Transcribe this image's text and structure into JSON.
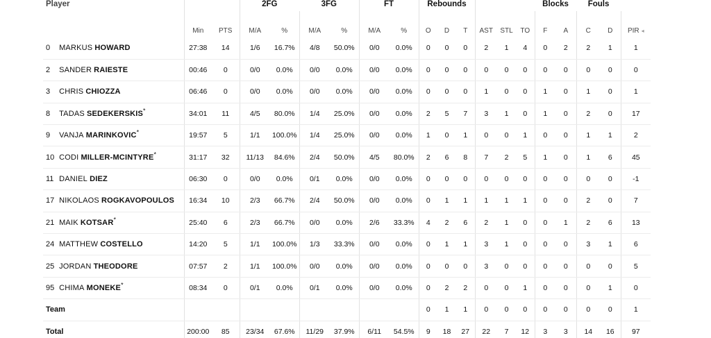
{
  "headers": {
    "player": "Player",
    "groups": {
      "fg2": "2FG",
      "fg3": "3FG",
      "ft": "FT",
      "rebounds": "Rebounds",
      "blocks": "Blocks",
      "fouls": "Fouls"
    },
    "cols": {
      "min": "Min",
      "pts": "PTS",
      "fg2_ma": "M/A",
      "fg2_pct": "%",
      "fg3_ma": "M/A",
      "fg3_pct": "%",
      "ft_ma": "M/A",
      "ft_pct": "%",
      "reb_o": "O",
      "reb_d": "D",
      "reb_t": "T",
      "ast": "AST",
      "stl": "STL",
      "to": "TO",
      "blk_f": "F",
      "blk_a": "A",
      "foul_c": "C",
      "foul_d": "D",
      "pir": "PIR",
      "pir_more": "◂"
    }
  },
  "players": [
    {
      "num": "0",
      "first": "MARKUS",
      "last": "HOWARD",
      "star": "",
      "min": "27:38",
      "pts": "14",
      "fg2": "1/6",
      "fg2p": "16.7%",
      "fg3": "4/8",
      "fg3p": "50.0%",
      "ft": "0/0",
      "ftp": "0.0%",
      "o": "0",
      "d": "0",
      "t": "0",
      "ast": "2",
      "stl": "1",
      "to": "4",
      "bf": "0",
      "ba": "2",
      "fc": "2",
      "fd": "1",
      "pir": "1"
    },
    {
      "num": "2",
      "first": "SANDER",
      "last": "RAIESTE",
      "star": "",
      "min": "00:46",
      "pts": "0",
      "fg2": "0/0",
      "fg2p": "0.0%",
      "fg3": "0/0",
      "fg3p": "0.0%",
      "ft": "0/0",
      "ftp": "0.0%",
      "o": "0",
      "d": "0",
      "t": "0",
      "ast": "0",
      "stl": "0",
      "to": "0",
      "bf": "0",
      "ba": "0",
      "fc": "0",
      "fd": "0",
      "pir": "0"
    },
    {
      "num": "3",
      "first": "CHRIS",
      "last": "CHIOZZA",
      "star": "",
      "min": "06:46",
      "pts": "0",
      "fg2": "0/0",
      "fg2p": "0.0%",
      "fg3": "0/0",
      "fg3p": "0.0%",
      "ft": "0/0",
      "ftp": "0.0%",
      "o": "0",
      "d": "0",
      "t": "0",
      "ast": "1",
      "stl": "0",
      "to": "0",
      "bf": "1",
      "ba": "0",
      "fc": "1",
      "fd": "0",
      "pir": "1"
    },
    {
      "num": "8",
      "first": "TADAS",
      "last": "SEDEKERSKIS",
      "star": "*",
      "min": "34:01",
      "pts": "11",
      "fg2": "4/5",
      "fg2p": "80.0%",
      "fg3": "1/4",
      "fg3p": "25.0%",
      "ft": "0/0",
      "ftp": "0.0%",
      "o": "2",
      "d": "5",
      "t": "7",
      "ast": "3",
      "stl": "1",
      "to": "0",
      "bf": "1",
      "ba": "0",
      "fc": "2",
      "fd": "0",
      "pir": "17"
    },
    {
      "num": "9",
      "first": "VANJA",
      "last": "MARINKOVIC",
      "star": "*",
      "min": "19:57",
      "pts": "5",
      "fg2": "1/1",
      "fg2p": "100.0%",
      "fg3": "1/4",
      "fg3p": "25.0%",
      "ft": "0/0",
      "ftp": "0.0%",
      "o": "1",
      "d": "0",
      "t": "1",
      "ast": "0",
      "stl": "0",
      "to": "1",
      "bf": "0",
      "ba": "0",
      "fc": "1",
      "fd": "1",
      "pir": "2"
    },
    {
      "num": "10",
      "first": "CODI",
      "last": "MILLER-MCINTYRE",
      "star": "*",
      "min": "31:17",
      "pts": "32",
      "fg2": "11/13",
      "fg2p": "84.6%",
      "fg3": "2/4",
      "fg3p": "50.0%",
      "ft": "4/5",
      "ftp": "80.0%",
      "o": "2",
      "d": "6",
      "t": "8",
      "ast": "7",
      "stl": "2",
      "to": "5",
      "bf": "1",
      "ba": "0",
      "fc": "1",
      "fd": "6",
      "pir": "45"
    },
    {
      "num": "11",
      "first": "DANIEL",
      "last": "DIEZ",
      "star": "",
      "min": "06:30",
      "pts": "0",
      "fg2": "0/0",
      "fg2p": "0.0%",
      "fg3": "0/1",
      "fg3p": "0.0%",
      "ft": "0/0",
      "ftp": "0.0%",
      "o": "0",
      "d": "0",
      "t": "0",
      "ast": "0",
      "stl": "0",
      "to": "0",
      "bf": "0",
      "ba": "0",
      "fc": "0",
      "fd": "0",
      "pir": "-1"
    },
    {
      "num": "17",
      "first": "NIKOLAOS",
      "last": "ROGKAVOPOULOS",
      "star": "",
      "min": "16:34",
      "pts": "10",
      "fg2": "2/3",
      "fg2p": "66.7%",
      "fg3": "2/4",
      "fg3p": "50.0%",
      "ft": "0/0",
      "ftp": "0.0%",
      "o": "0",
      "d": "1",
      "t": "1",
      "ast": "1",
      "stl": "1",
      "to": "1",
      "bf": "0",
      "ba": "0",
      "fc": "2",
      "fd": "0",
      "pir": "7"
    },
    {
      "num": "21",
      "first": "MAIK",
      "last": "KOTSAR",
      "star": "*",
      "min": "25:40",
      "pts": "6",
      "fg2": "2/3",
      "fg2p": "66.7%",
      "fg3": "0/0",
      "fg3p": "0.0%",
      "ft": "2/6",
      "ftp": "33.3%",
      "o": "4",
      "d": "2",
      "t": "6",
      "ast": "2",
      "stl": "1",
      "to": "0",
      "bf": "0",
      "ba": "1",
      "fc": "2",
      "fd": "6",
      "pir": "13"
    },
    {
      "num": "24",
      "first": "MATTHEW",
      "last": "COSTELLO",
      "star": "",
      "min": "14:20",
      "pts": "5",
      "fg2": "1/1",
      "fg2p": "100.0%",
      "fg3": "1/3",
      "fg3p": "33.3%",
      "ft": "0/0",
      "ftp": "0.0%",
      "o": "0",
      "d": "1",
      "t": "1",
      "ast": "3",
      "stl": "1",
      "to": "0",
      "bf": "0",
      "ba": "0",
      "fc": "3",
      "fd": "1",
      "pir": "6"
    },
    {
      "num": "25",
      "first": "JORDAN",
      "last": "THEODORE",
      "star": "",
      "min": "07:57",
      "pts": "2",
      "fg2": "1/1",
      "fg2p": "100.0%",
      "fg3": "0/0",
      "fg3p": "0.0%",
      "ft": "0/0",
      "ftp": "0.0%",
      "o": "0",
      "d": "0",
      "t": "0",
      "ast": "3",
      "stl": "0",
      "to": "0",
      "bf": "0",
      "ba": "0",
      "fc": "0",
      "fd": "0",
      "pir": "5"
    },
    {
      "num": "95",
      "first": "CHIMA",
      "last": "MONEKE",
      "star": "*",
      "min": "08:34",
      "pts": "0",
      "fg2": "0/1",
      "fg2p": "0.0%",
      "fg3": "0/1",
      "fg3p": "0.0%",
      "ft": "0/0",
      "ftp": "0.0%",
      "o": "0",
      "d": "2",
      "t": "2",
      "ast": "0",
      "stl": "0",
      "to": "1",
      "bf": "0",
      "ba": "0",
      "fc": "0",
      "fd": "1",
      "pir": "0"
    }
  ],
  "team": {
    "label": "Team",
    "o": "0",
    "d": "1",
    "t": "1",
    "ast": "0",
    "stl": "0",
    "to": "0",
    "bf": "0",
    "ba": "0",
    "fc": "0",
    "fd": "0",
    "pir": "1"
  },
  "total": {
    "label": "Total",
    "min": "200:00",
    "pts": "85",
    "fg2": "23/34",
    "fg2p": "67.6%",
    "fg3": "11/29",
    "fg3p": "37.9%",
    "ft": "6/11",
    "ftp": "54.5%",
    "o": "9",
    "d": "18",
    "t": "27",
    "ast": "22",
    "stl": "7",
    "to": "12",
    "bf": "3",
    "ba": "3",
    "fc": "14",
    "fd": "16",
    "pir": "97"
  }
}
